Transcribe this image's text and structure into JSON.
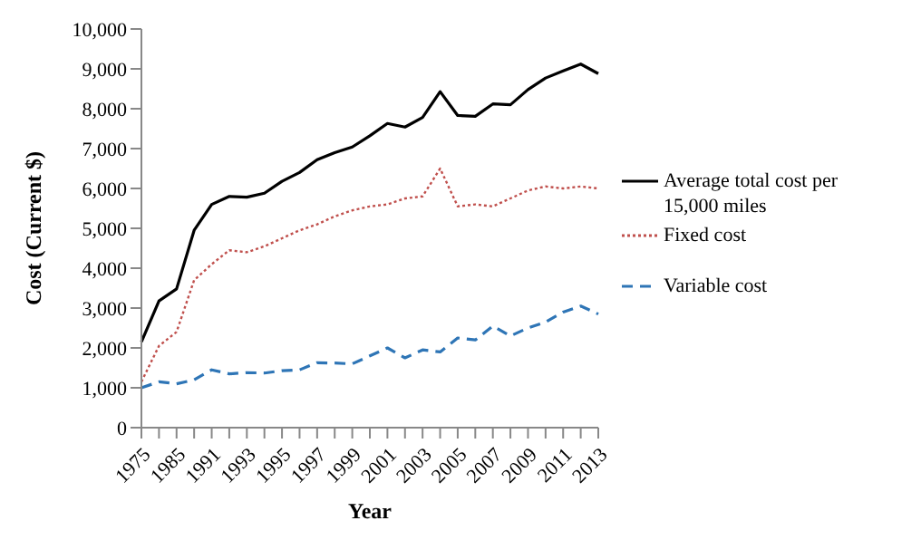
{
  "chart_data": {
    "type": "line",
    "xlabel": "Year",
    "ylabel": "Cost (Current $)",
    "categories": [
      "1975",
      null,
      "1985",
      null,
      "1991",
      null,
      "1993",
      null,
      "1995",
      null,
      "1997",
      null,
      "1999",
      null,
      "2001",
      null,
      "2003",
      null,
      "2005",
      null,
      "2007",
      null,
      "2009",
      null,
      "2011",
      null,
      "2013"
    ],
    "series": [
      {
        "name": "Average total cost per 15,000 miles",
        "color": "#000000",
        "line_style": "solid",
        "values": [
          2150,
          3180,
          3480,
          4950,
          5600,
          5800,
          5780,
          5880,
          6180,
          6400,
          6720,
          6900,
          7040,
          7320,
          7630,
          7540,
          7780,
          8430,
          7830,
          7810,
          8120,
          8100,
          8480,
          8770,
          8950,
          9120,
          8880
        ]
      },
      {
        "name": "Fixed cost",
        "color": "#c0504d",
        "line_style": "dotted",
        "values": [
          1150,
          2050,
          2400,
          3700,
          4100,
          4450,
          4400,
          4550,
          4750,
          4950,
          5100,
          5300,
          5450,
          5550,
          5600,
          5750,
          5800,
          6500,
          5550,
          5600,
          5550,
          5750,
          5950,
          6050,
          6000,
          6050,
          6000
        ]
      },
      {
        "name": "Variable cost",
        "color": "#2e75b6",
        "line_style": "dashed",
        "values": [
          1000,
          1150,
          1100,
          1200,
          1450,
          1350,
          1380,
          1370,
          1430,
          1450,
          1630,
          1620,
          1600,
          1800,
          2000,
          1750,
          1950,
          1900,
          2250,
          2200,
          2550,
          2300,
          2500,
          2650,
          2900,
          3050,
          2850
        ]
      }
    ],
    "ylim": [
      0,
      10000
    ],
    "yticks": [
      0,
      {
        "value": 1000,
        "label": "1,000"
      },
      {
        "value": 2000,
        "label": "2,000"
      },
      {
        "value": 3000,
        "label": "3,000"
      },
      {
        "value": 4000,
        "label": "4,000"
      },
      {
        "value": 5000,
        "label": "5,000"
      },
      {
        "value": 6000,
        "label": "6,000"
      },
      {
        "value": 7000,
        "label": "7,000"
      },
      {
        "value": 8000,
        "label": "8,000"
      },
      {
        "value": 9000,
        "label": "9,000"
      },
      {
        "value": 10000,
        "label": "10,000"
      }
    ],
    "grid": false,
    "legend": "right",
    "marker": "none"
  }
}
